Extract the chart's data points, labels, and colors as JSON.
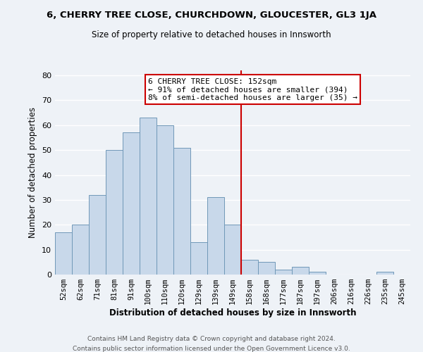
{
  "title1": "6, CHERRY TREE CLOSE, CHURCHDOWN, GLOUCESTER, GL3 1JA",
  "title2": "Size of property relative to detached houses in Innsworth",
  "xlabel": "Distribution of detached houses by size in Innsworth",
  "ylabel": "Number of detached properties",
  "bar_labels": [
    "52sqm",
    "62sqm",
    "71sqm",
    "81sqm",
    "91sqm",
    "100sqm",
    "110sqm",
    "120sqm",
    "129sqm",
    "139sqm",
    "149sqm",
    "158sqm",
    "168sqm",
    "177sqm",
    "187sqm",
    "197sqm",
    "206sqm",
    "216sqm",
    "226sqm",
    "235sqm",
    "245sqm"
  ],
  "bar_values": [
    17,
    20,
    32,
    50,
    57,
    63,
    60,
    51,
    13,
    31,
    20,
    6,
    5,
    2,
    3,
    1,
    0,
    0,
    0,
    1,
    0
  ],
  "bar_color": "#c8d8ea",
  "bar_edge_color": "#7098b8",
  "vline_x": 10.5,
  "vline_color": "#cc0000",
  "annotation_title": "6 CHERRY TREE CLOSE: 152sqm",
  "annotation_line1": "← 91% of detached houses are smaller (394)",
  "annotation_line2": "8% of semi-detached houses are larger (35) →",
  "annotation_box_color": "#ffffff",
  "annotation_box_edge": "#cc0000",
  "ylim": [
    0,
    82
  ],
  "yticks": [
    0,
    10,
    20,
    30,
    40,
    50,
    60,
    70,
    80
  ],
  "footer1": "Contains HM Land Registry data © Crown copyright and database right 2024.",
  "footer2": "Contains public sector information licensed under the Open Government Licence v3.0.",
  "background_color": "#eef2f7",
  "grid_color": "#ffffff"
}
